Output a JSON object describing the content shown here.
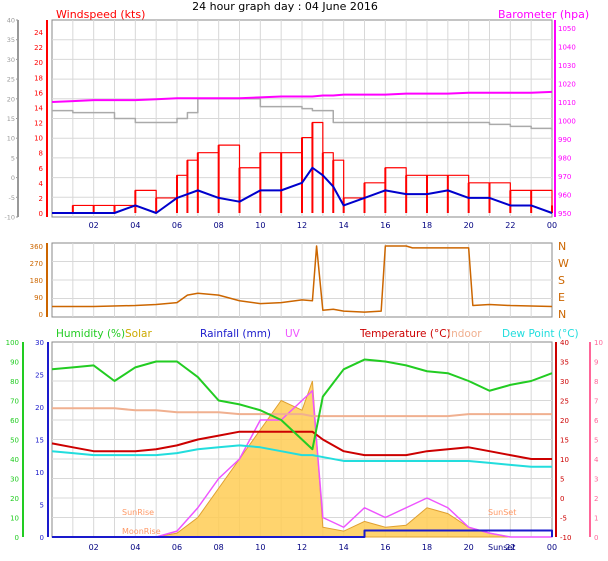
{
  "title": "24 hour graph day : 04 June 2016",
  "colors": {
    "wind": "#ff0000",
    "gust": "#ff0000",
    "avg": "#0000cc",
    "baro": "#ff00ff",
    "gray": "#aaaaaa",
    "dir": "#cc6600",
    "humidity": "#22cc22",
    "solar": "#ccaa00",
    "rain": "#1a1acc",
    "uv": "#ee55ff",
    "temp": "#cc0000",
    "indoor": "#f0b090",
    "dew": "#22dddd",
    "solarfill": "#ffcc55",
    "pink": "#ff6699"
  },
  "chart_data": [
    {
      "type": "line",
      "panel": "wind",
      "title": "24 hour graph day : 04 June 2016",
      "left_label": "Windspeed (kts)",
      "right_label": "Barometer (hpa)",
      "y_left_ticks": [
        -10,
        -5,
        0,
        5,
        10,
        15,
        20,
        25,
        30,
        35,
        40
      ],
      "y_right_ticks": [
        950,
        960,
        970,
        980,
        990,
        1000,
        1010,
        1020,
        1030,
        1040,
        1050
      ],
      "y_left2_ticks": [
        0,
        2,
        4,
        6,
        8,
        10,
        12,
        14,
        16,
        18,
        20,
        22,
        24
      ],
      "x_ticks": [
        "02",
        "04",
        "06",
        "08",
        "10",
        "12",
        "14",
        "16",
        "18",
        "20",
        "22",
        "00"
      ],
      "hours": [
        0,
        1,
        2,
        3,
        4,
        5,
        6,
        6.5,
        7,
        8,
        9,
        10,
        11,
        12,
        12.5,
        13,
        13.5,
        14,
        15,
        16,
        17,
        18,
        19,
        20,
        21,
        22,
        23,
        24
      ],
      "wind_gust": [
        0,
        1,
        1,
        1,
        3,
        2,
        5,
        7,
        8,
        9,
        6,
        8,
        8,
        10,
        12,
        8,
        7,
        2,
        4,
        6,
        5,
        5,
        5,
        4,
        4,
        3,
        3,
        1
      ],
      "wind_avg": [
        0,
        0,
        0,
        0,
        1,
        0,
        2,
        2.5,
        3,
        2,
        1.5,
        3,
        3,
        4,
        6,
        5,
        3.5,
        1,
        2,
        3,
        2.5,
        2.5,
        3,
        2,
        2,
        1,
        1,
        0
      ],
      "barometer": [
        1010,
        1010.5,
        1011,
        1011,
        1011,
        1011.5,
        1012,
        1012,
        1012,
        1012,
        1012,
        1012.5,
        1013,
        1013,
        1013,
        1013.5,
        1013.5,
        1014,
        1014,
        1014,
        1014.5,
        1014.5,
        1014.5,
        1015,
        1015,
        1015,
        1015,
        1015.5
      ],
      "secondary_gray": [
        17,
        16.5,
        16.5,
        15,
        14,
        14,
        15,
        16.5,
        20,
        20,
        20,
        18,
        18,
        17.5,
        17,
        17,
        14,
        14,
        14,
        14,
        14,
        14,
        14,
        14,
        13.5,
        13,
        12.5,
        12
      ]
    },
    {
      "type": "line",
      "panel": "direction",
      "y_left_ticks": [
        0,
        45,
        90,
        135,
        180,
        225,
        270,
        315,
        360
      ],
      "y_right_labels": [
        "N",
        "W",
        "S",
        "E",
        "N"
      ],
      "hours": [
        0,
        2,
        4,
        5,
        6,
        6.5,
        7,
        8,
        9,
        10,
        11,
        12,
        12.5,
        12.7,
        13,
        13.5,
        14,
        15,
        15.8,
        16,
        16.5,
        17,
        17.3,
        18,
        19,
        20,
        20.2,
        21,
        22,
        24
      ],
      "direction": [
        40,
        40,
        45,
        50,
        60,
        100,
        110,
        100,
        70,
        55,
        60,
        75,
        70,
        360,
        20,
        25,
        15,
        10,
        15,
        360,
        360,
        360,
        350,
        350,
        350,
        350,
        45,
        50,
        45,
        40
      ]
    },
    {
      "type": "line",
      "panel": "temp",
      "labels": [
        "Humidity (%)",
        "Solar",
        "Rainfall (mm)",
        "UV",
        "Temperature (°C)",
        "Indoor",
        "Dew Point (°C)"
      ],
      "y_left_ticks_humidity": [
        0,
        10,
        20,
        30,
        40,
        50,
        60,
        70,
        80,
        90,
        100
      ],
      "y_left2_ticks_rain": [
        0,
        5,
        10,
        15,
        20,
        25,
        30
      ],
      "y_right_ticks_temp": [
        -10,
        -5,
        0,
        5,
        10,
        15,
        20,
        25,
        30,
        35,
        40
      ],
      "y_right2_ticks_uv": [
        0,
        1,
        2,
        3,
        4,
        5,
        6,
        7,
        8,
        9,
        10
      ],
      "x_ticks": [
        "02",
        "04",
        "06",
        "08",
        "10",
        "12",
        "14",
        "16",
        "18",
        "20",
        "22",
        "00"
      ],
      "annotations": [
        "SunRise",
        "MoonRise",
        "SunSet",
        "Sunset"
      ],
      "hours": [
        0,
        1,
        2,
        3,
        4,
        5,
        6,
        7,
        8,
        9,
        10,
        11,
        12,
        12.5,
        13,
        14,
        15,
        16,
        17,
        18,
        19,
        20,
        21,
        22,
        23,
        24
      ],
      "humidity": [
        86,
        87,
        88,
        80,
        87,
        90,
        90,
        82,
        70,
        68,
        65,
        60,
        50,
        45,
        72,
        86,
        91,
        90,
        88,
        85,
        84,
        80,
        75,
        78,
        80,
        84
      ],
      "temperature": [
        14,
        13,
        12,
        12,
        12,
        12.5,
        13.5,
        15,
        16,
        17,
        17,
        17,
        17,
        17,
        15,
        12,
        11,
        11,
        11,
        12,
        12.5,
        13,
        12,
        11,
        10,
        10
      ],
      "dew_point": [
        12,
        11.5,
        11,
        11,
        11,
        11,
        11.5,
        12.5,
        13,
        13.5,
        13,
        12,
        11,
        11,
        10.5,
        9.5,
        9.5,
        9.5,
        9.5,
        9.5,
        9.5,
        9.5,
        9,
        8.5,
        8,
        8
      ],
      "indoor": [
        23,
        23,
        23,
        23,
        22.5,
        22.5,
        22,
        22,
        22,
        21.5,
        21.5,
        21.5,
        21.5,
        21,
        21,
        21,
        21,
        21,
        21,
        21,
        21,
        21.5,
        21.5,
        21.5,
        21.5,
        21.5
      ],
      "rainfall": [
        0,
        0,
        0,
        0,
        0,
        0,
        0,
        0,
        0,
        0,
        0,
        0,
        0,
        0,
        0,
        0,
        1,
        1,
        1,
        1,
        1,
        1,
        1,
        1,
        1,
        0
      ],
      "solar_uv": [
        0,
        0,
        0,
        0,
        0,
        0,
        0.2,
        1,
        2.5,
        4,
        5.5,
        7,
        6.5,
        8,
        0.5,
        0.3,
        0.8,
        0.5,
        0.6,
        1.5,
        1.2,
        0.5,
        0.2,
        0,
        0,
        0
      ],
      "uv_index": [
        0,
        0,
        0,
        0,
        0,
        0,
        0.3,
        1.5,
        3,
        4,
        6,
        6,
        7,
        7.5,
        1,
        0.5,
        1.5,
        1,
        1.5,
        2,
        1.5,
        0.5,
        0.2,
        0,
        0,
        0
      ]
    }
  ]
}
